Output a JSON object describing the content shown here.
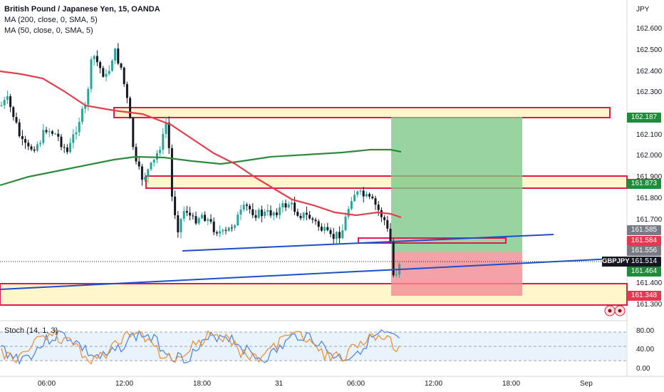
{
  "legend": {
    "title": "British Pound / Japanese Yen, 15, OANDA",
    "ma200": "MA (200, close, 0, SMA, 5)",
    "ma50": "MA (50, close, 0, SMA, 5)"
  },
  "stoch_label": "Stoch (14, 1, 3)",
  "currency": "JPY",
  "symbol": "GBPJPY",
  "price_axis": [
    "162.600",
    "162.500",
    "162.400",
    "162.300",
    "162.100",
    "162.000",
    "161.900",
    "161.800",
    "161.700",
    "161.400",
    "161.300"
  ],
  "badges": [
    {
      "text": "162.187",
      "color": "#1e8c3a"
    },
    {
      "text": "161.873",
      "color": "#1e8c3a"
    },
    {
      "text": "161.585",
      "color": "#787b86"
    },
    {
      "text": "161.584",
      "color": "#e5374f"
    },
    {
      "text": "161.556",
      "color": "#787b86"
    },
    {
      "text": "161.514",
      "color": "#131722"
    },
    {
      "text": "161.464",
      "color": "#1e8c3a"
    },
    {
      "text": "161.348",
      "color": "#e5374f"
    }
  ],
  "time_axis": [
    "06:00",
    "12:00",
    "18:00",
    "31",
    "06:00",
    "12:00",
    "18:00",
    "Sep"
  ],
  "stoch_ticks": [
    "80.00",
    "40.00",
    "0.00"
  ],
  "colors": {
    "up": "#26a69a",
    "down": "#131722",
    "ma200": "#2e8b3e",
    "ma50": "#e0404c",
    "zone_fill": "#fff6cc",
    "zone_stroke": "#e0194f",
    "trend": "#1f4fc8",
    "tp": "#7fc88a",
    "sl": "#f28a92",
    "stoch_k": "#4a7fe0",
    "stoch_d": "#f08b2a"
  }
}
